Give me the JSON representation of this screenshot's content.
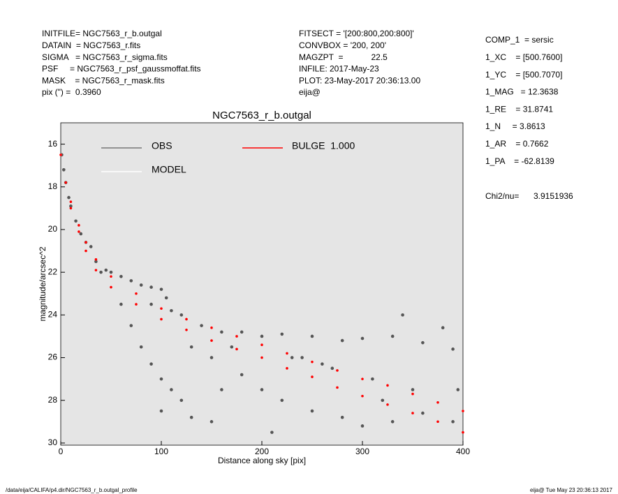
{
  "header": {
    "left": [
      "INITFILE= NGC7563_r_b.outgal",
      "DATAIN  = NGC7563_r.fits",
      "SIGMA   = NGC7563_r_sigma.fits",
      "PSF     = NGC7563_r_psf_gaussmoffat.fits",
      "MASK    = NGC7563_r_mask.fits",
      "pix (\") =  0.3960"
    ],
    "middle": [
      "FITSECT = '[200:800,200:800]'",
      "CONVBOX = '200, 200'",
      "MAGZPT  =            22.5",
      "INFILE: 2017-May-23",
      "PLOT: 23-May-2017 20:36:13.00",
      "eija@"
    ],
    "params": [
      "COMP_1  = sersic",
      "1_XC    = [500.7600]",
      "1_YC    = [500.7070]",
      "1_MAG   = 12.3638",
      "1_RE    = 31.8741",
      "1_N     = 3.8613",
      "1_AR    = 0.7662",
      "1_PA    = -62.8139"
    ],
    "chi_label": "Chi2/nu=",
    "chi_value": "3.9151936"
  },
  "footer": {
    "path": "/data/eija/CALIFA/p4.dir/NGC7563_r_b.outgal_profile",
    "stamp": "eija@   Tue May 23 20:36:13 2017"
  },
  "chart_data": {
    "type": "scatter",
    "title": "NGC7563_r_b.outgal",
    "x_label": "Distance along sky [pix]",
    "y_label": "magnitude/arcsec^2",
    "xlim": [
      0,
      400
    ],
    "xticks": [
      0,
      100,
      200,
      300,
      400
    ],
    "ylim": [
      30.1,
      15
    ],
    "yticks": [
      16,
      18,
      20,
      22,
      24,
      26,
      28,
      30
    ],
    "y_inverted": true,
    "series": [
      {
        "name": "OBS",
        "color": "#555555",
        "x": [
          1,
          3,
          5,
          8,
          10,
          15,
          20,
          25,
          30,
          35,
          40,
          45,
          50,
          60,
          70,
          80,
          90,
          100,
          105,
          110,
          60,
          70,
          80,
          90,
          100,
          110,
          120,
          90,
          120,
          140,
          160,
          180,
          200,
          220,
          250,
          280,
          300,
          330,
          360,
          390,
          150,
          180,
          200,
          220,
          250,
          280,
          300,
          330,
          360,
          390,
          130,
          170,
          230,
          270,
          310,
          350,
          240,
          260,
          150,
          210,
          340,
          380,
          100,
          130,
          160,
          320,
          395
        ],
        "values": [
          16.5,
          17.2,
          17.8,
          18.5,
          18.9,
          19.6,
          20.2,
          20.6,
          20.8,
          21.5,
          22.0,
          21.9,
          22.0,
          22.2,
          22.4,
          22.6,
          22.7,
          22.8,
          23.2,
          23.8,
          23.5,
          24.5,
          25.5,
          26.3,
          27.0,
          27.5,
          28.0,
          23.5,
          24.0,
          24.5,
          24.8,
          24.8,
          25.0,
          24.9,
          25.0,
          25.2,
          25.1,
          25.0,
          25.3,
          25.6,
          26.0,
          26.8,
          27.5,
          28.0,
          28.5,
          28.8,
          29.2,
          29.0,
          28.6,
          29.0,
          25.5,
          25.5,
          26.0,
          26.5,
          27.0,
          27.5,
          26.0,
          26.3,
          29.0,
          29.5,
          24.0,
          24.6,
          28.5,
          28.8,
          27.5,
          28.0,
          27.5
        ]
      },
      {
        "name": "MODEL",
        "color": "#ffffff",
        "x": [
          0,
          10,
          25,
          50,
          100,
          150,
          200,
          250,
          300,
          350,
          400
        ],
        "values": [
          16.5,
          18.7,
          20.6,
          22.2,
          23.7,
          24.6,
          25.4,
          26.2,
          27.0,
          27.7,
          28.5
        ]
      },
      {
        "name": "BULGE  1.000",
        "color": "#ff0000",
        "x": [
          0,
          5,
          10,
          18,
          25,
          35,
          50,
          75,
          100,
          125,
          150,
          175,
          200,
          225,
          250,
          275,
          300,
          325,
          350,
          375,
          400,
          10,
          18,
          25,
          35,
          50,
          75,
          100,
          125,
          150,
          175,
          200,
          225,
          250,
          275,
          300,
          325,
          350,
          375,
          400
        ],
        "values": [
          16.5,
          17.8,
          18.7,
          19.8,
          20.6,
          21.4,
          22.2,
          23.0,
          23.7,
          24.2,
          24.6,
          25.0,
          25.4,
          25.8,
          26.2,
          26.6,
          27.0,
          27.3,
          27.7,
          28.1,
          28.5,
          19.0,
          20.1,
          21.0,
          21.9,
          22.7,
          23.5,
          24.2,
          24.7,
          25.2,
          25.6,
          26.0,
          26.5,
          26.9,
          27.4,
          27.8,
          28.2,
          28.6,
          29.0,
          29.5
        ]
      }
    ]
  }
}
